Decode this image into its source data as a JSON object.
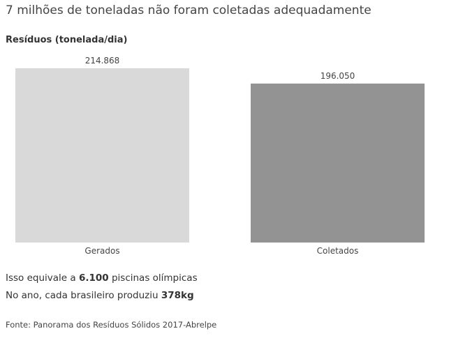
{
  "chart_data": {
    "type": "bar",
    "title": "7 milhões de toneladas não foram coletadas adequadamente",
    "subtitle": "Resíduos (tonelada/dia)",
    "categories": [
      "Gerados",
      "Coletados"
    ],
    "values": [
      214868,
      196050
    ],
    "value_labels": [
      "214.868",
      "196.050"
    ],
    "colors": [
      "#d9d9d9",
      "#939393"
    ],
    "notes": [
      [
        "Isso equivale a ",
        "6.100",
        " piscinas olímpicas"
      ],
      [
        "No ano, cada brasileiro produziu ",
        "378kg"
      ]
    ],
    "source": "Fonte: Panorama dos Resíduos Sólidos 2017-Abrelpe"
  }
}
